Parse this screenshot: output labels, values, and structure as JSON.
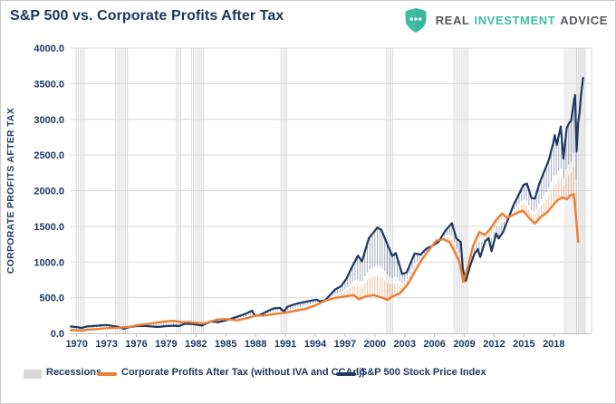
{
  "header": {
    "title": "S&P 500 vs. Corporate Profits After Tax"
  },
  "brand": {
    "word1": "REAL",
    "word2": "INVESTMENT",
    "word3": "ADVICE",
    "shield_color": "#3ebda4",
    "text_color": "#55575b",
    "icon": "shield-with-three-dots"
  },
  "chart_data": {
    "type": "line",
    "title": "S&P 500 vs. Corporate Profits After Tax",
    "xlabel": "",
    "ylabel": "CORPORATE PROFITS AFTER TAX",
    "ylim": [
      0,
      4000
    ],
    "ytick_values": [
      0,
      500,
      1000,
      1500,
      2000,
      2500,
      3000,
      3500,
      4000
    ],
    "ytick_labels": [
      "0.0",
      "500.0",
      "1000.0",
      "1500.0",
      "2000.0",
      "2500.0",
      "3000.0",
      "3500.0",
      "4000.0"
    ],
    "xticks": [
      1970,
      1973,
      1976,
      1979,
      1982,
      1985,
      1988,
      1991,
      1994,
      1997,
      2000,
      2003,
      2006,
      2009,
      2012,
      2015,
      2018
    ],
    "x_domain": [
      1969.3,
      2021.8
    ],
    "grid": "horizontal",
    "legend_position": "bottom",
    "colors": {
      "navy": "#1f3864",
      "orange": "#ed7d31",
      "grid": "#d9d9d9",
      "axis": "#bfbfbf",
      "recession_line": "#dcdcdc",
      "recession_band": "#f0f0f0",
      "label": "#1f3864"
    },
    "series": [
      {
        "name": "Corporate Profits After Tax (without IVA and CCAdj)",
        "color": "#ed7d31",
        "points": [
          [
            1969.4,
            44
          ],
          [
            1970,
            42
          ],
          [
            1970.6,
            40
          ],
          [
            1971,
            50
          ],
          [
            1972,
            60
          ],
          [
            1973,
            72
          ],
          [
            1974,
            78
          ],
          [
            1974.7,
            85
          ],
          [
            1975.4,
            92
          ],
          [
            1976,
            112
          ],
          [
            1977,
            130
          ],
          [
            1978,
            150
          ],
          [
            1979,
            168
          ],
          [
            1979.8,
            175
          ],
          [
            1980.6,
            155
          ],
          [
            1981.3,
            160
          ],
          [
            1982.2,
            145
          ],
          [
            1982.8,
            138
          ],
          [
            1983.6,
            172
          ],
          [
            1984.3,
            195
          ],
          [
            1985.2,
            200
          ],
          [
            1986.1,
            182
          ],
          [
            1987,
            208
          ],
          [
            1988,
            248
          ],
          [
            1989,
            252
          ],
          [
            1990,
            272
          ],
          [
            1991,
            290
          ],
          [
            1992,
            315
          ],
          [
            1993,
            342
          ],
          [
            1994,
            390
          ],
          [
            1995,
            460
          ],
          [
            1996,
            495
          ],
          [
            1997.3,
            525
          ],
          [
            1997.9,
            535
          ],
          [
            1998.4,
            478
          ],
          [
            1999.1,
            520
          ],
          [
            1999.9,
            535
          ],
          [
            2000.6,
            505
          ],
          [
            2001.3,
            470
          ],
          [
            2001.8,
            520
          ],
          [
            2002.5,
            560
          ],
          [
            2003.2,
            665
          ],
          [
            2004,
            860
          ],
          [
            2004.8,
            1050
          ],
          [
            2005.5,
            1180
          ],
          [
            2006.2,
            1300
          ],
          [
            2006.9,
            1320
          ],
          [
            2007.5,
            1280
          ],
          [
            2008,
            1150
          ],
          [
            2008.5,
            1000
          ],
          [
            2008.9,
            720
          ],
          [
            2009.4,
            960
          ],
          [
            2009.9,
            1230
          ],
          [
            2010.5,
            1420
          ],
          [
            2011.05,
            1380
          ],
          [
            2011.6,
            1460
          ],
          [
            2012.2,
            1590
          ],
          [
            2012.8,
            1680
          ],
          [
            2013.3,
            1620
          ],
          [
            2013.9,
            1660
          ],
          [
            2014.5,
            1700
          ],
          [
            2014.9,
            1720
          ],
          [
            2015.5,
            1620
          ],
          [
            2016.1,
            1540
          ],
          [
            2016.7,
            1630
          ],
          [
            2017.3,
            1690
          ],
          [
            2017.9,
            1790
          ],
          [
            2018.4,
            1870
          ],
          [
            2018.9,
            1905
          ],
          [
            2019.3,
            1880
          ],
          [
            2019.7,
            1935
          ],
          [
            2020.0,
            1950
          ],
          [
            2020.2,
            1700
          ],
          [
            2020.45,
            1285
          ]
        ]
      },
      {
        "name": "S&P 500 Stock Price Index",
        "color": "#1f3864",
        "points": [
          [
            1969.4,
            97
          ],
          [
            1970,
            88
          ],
          [
            1970.5,
            76
          ],
          [
            1971,
            97
          ],
          [
            1972,
            107
          ],
          [
            1972.95,
            118
          ],
          [
            1973.6,
            104
          ],
          [
            1974.2,
            92
          ],
          [
            1974.75,
            65
          ],
          [
            1975.3,
            86
          ],
          [
            1976,
            101
          ],
          [
            1976.75,
            104
          ],
          [
            1977.5,
            97
          ],
          [
            1978.2,
            89
          ],
          [
            1979,
            101
          ],
          [
            1979.8,
            107
          ],
          [
            1980.3,
            102
          ],
          [
            1980.9,
            135
          ],
          [
            1981.6,
            131
          ],
          [
            1982.6,
            109
          ],
          [
            1983.5,
            166
          ],
          [
            1984.3,
            157
          ],
          [
            1985,
            182
          ],
          [
            1986,
            226
          ],
          [
            1987,
            274
          ],
          [
            1987.65,
            318
          ],
          [
            1987.95,
            245
          ],
          [
            1988.5,
            262
          ],
          [
            1989,
            297
          ],
          [
            1989.75,
            348
          ],
          [
            1990.45,
            358
          ],
          [
            1990.85,
            306
          ],
          [
            1991.2,
            372
          ],
          [
            1992,
            411
          ],
          [
            1993,
            442
          ],
          [
            1994.1,
            472
          ],
          [
            1994.5,
            448
          ],
          [
            1995,
            465
          ],
          [
            1996,
            614
          ],
          [
            1996.6,
            662
          ],
          [
            1997.15,
            770
          ],
          [
            1997.75,
            945
          ],
          [
            1998.3,
            1090
          ],
          [
            1998.7,
            1010
          ],
          [
            1999.4,
            1335
          ],
          [
            1999.9,
            1420
          ],
          [
            2000.25,
            1485
          ],
          [
            2000.65,
            1450
          ],
          [
            2001.1,
            1300
          ],
          [
            2001.75,
            1085
          ],
          [
            2002.1,
            1125
          ],
          [
            2002.75,
            830
          ],
          [
            2003.2,
            855
          ],
          [
            2004,
            1120
          ],
          [
            2004.6,
            1105
          ],
          [
            2005.2,
            1190
          ],
          [
            2005.7,
            1220
          ],
          [
            2006.4,
            1280
          ],
          [
            2007.1,
            1440
          ],
          [
            2007.75,
            1545
          ],
          [
            2008.2,
            1330
          ],
          [
            2008.65,
            1280
          ],
          [
            2008.85,
            900
          ],
          [
            2009.15,
            735
          ],
          [
            2009.6,
            950
          ],
          [
            2010,
            1110
          ],
          [
            2010.35,
            1180
          ],
          [
            2010.6,
            1070
          ],
          [
            2011.1,
            1290
          ],
          [
            2011.45,
            1335
          ],
          [
            2011.75,
            1150
          ],
          [
            2012.2,
            1400
          ],
          [
            2012.45,
            1330
          ],
          [
            2012.9,
            1420
          ],
          [
            2013.4,
            1600
          ],
          [
            2013.95,
            1800
          ],
          [
            2014.5,
            1950
          ],
          [
            2014.95,
            2080
          ],
          [
            2015.3,
            2100
          ],
          [
            2015.75,
            1900
          ],
          [
            2016.1,
            1890
          ],
          [
            2016.55,
            2100
          ],
          [
            2016.95,
            2240
          ],
          [
            2017.5,
            2430
          ],
          [
            2017.95,
            2670
          ],
          [
            2018.1,
            2780
          ],
          [
            2018.3,
            2640
          ],
          [
            2018.7,
            2900
          ],
          [
            2018.97,
            2450
          ],
          [
            2019.3,
            2880
          ],
          [
            2019.55,
            2950
          ],
          [
            2019.75,
            2980
          ],
          [
            2020.05,
            3280
          ],
          [
            2020.15,
            3340
          ],
          [
            2020.3,
            2550
          ],
          [
            2020.45,
            2950
          ],
          [
            2020.6,
            3100
          ],
          [
            2020.75,
            3350
          ],
          [
            2020.95,
            3580
          ]
        ]
      }
    ],
    "connector_hatch": {
      "style": "vertical high-low lines between series",
      "step_years": 0.25
    },
    "recessions": {
      "label": "Recessions",
      "swatch_color": "#d9d9d9",
      "intervals": [
        [
          1969.95,
          1970.92
        ],
        [
          1973.9,
          1975.25
        ],
        [
          1980.05,
          1980.62
        ],
        [
          1981.55,
          1982.9
        ],
        [
          1990.55,
          1991.25
        ],
        [
          2001.2,
          2001.9
        ],
        [
          2007.95,
          2009.5
        ],
        [
          2020.3,
          2021.2
        ]
      ],
      "wide_band": [
        2019.0,
        2021.3
      ]
    }
  }
}
